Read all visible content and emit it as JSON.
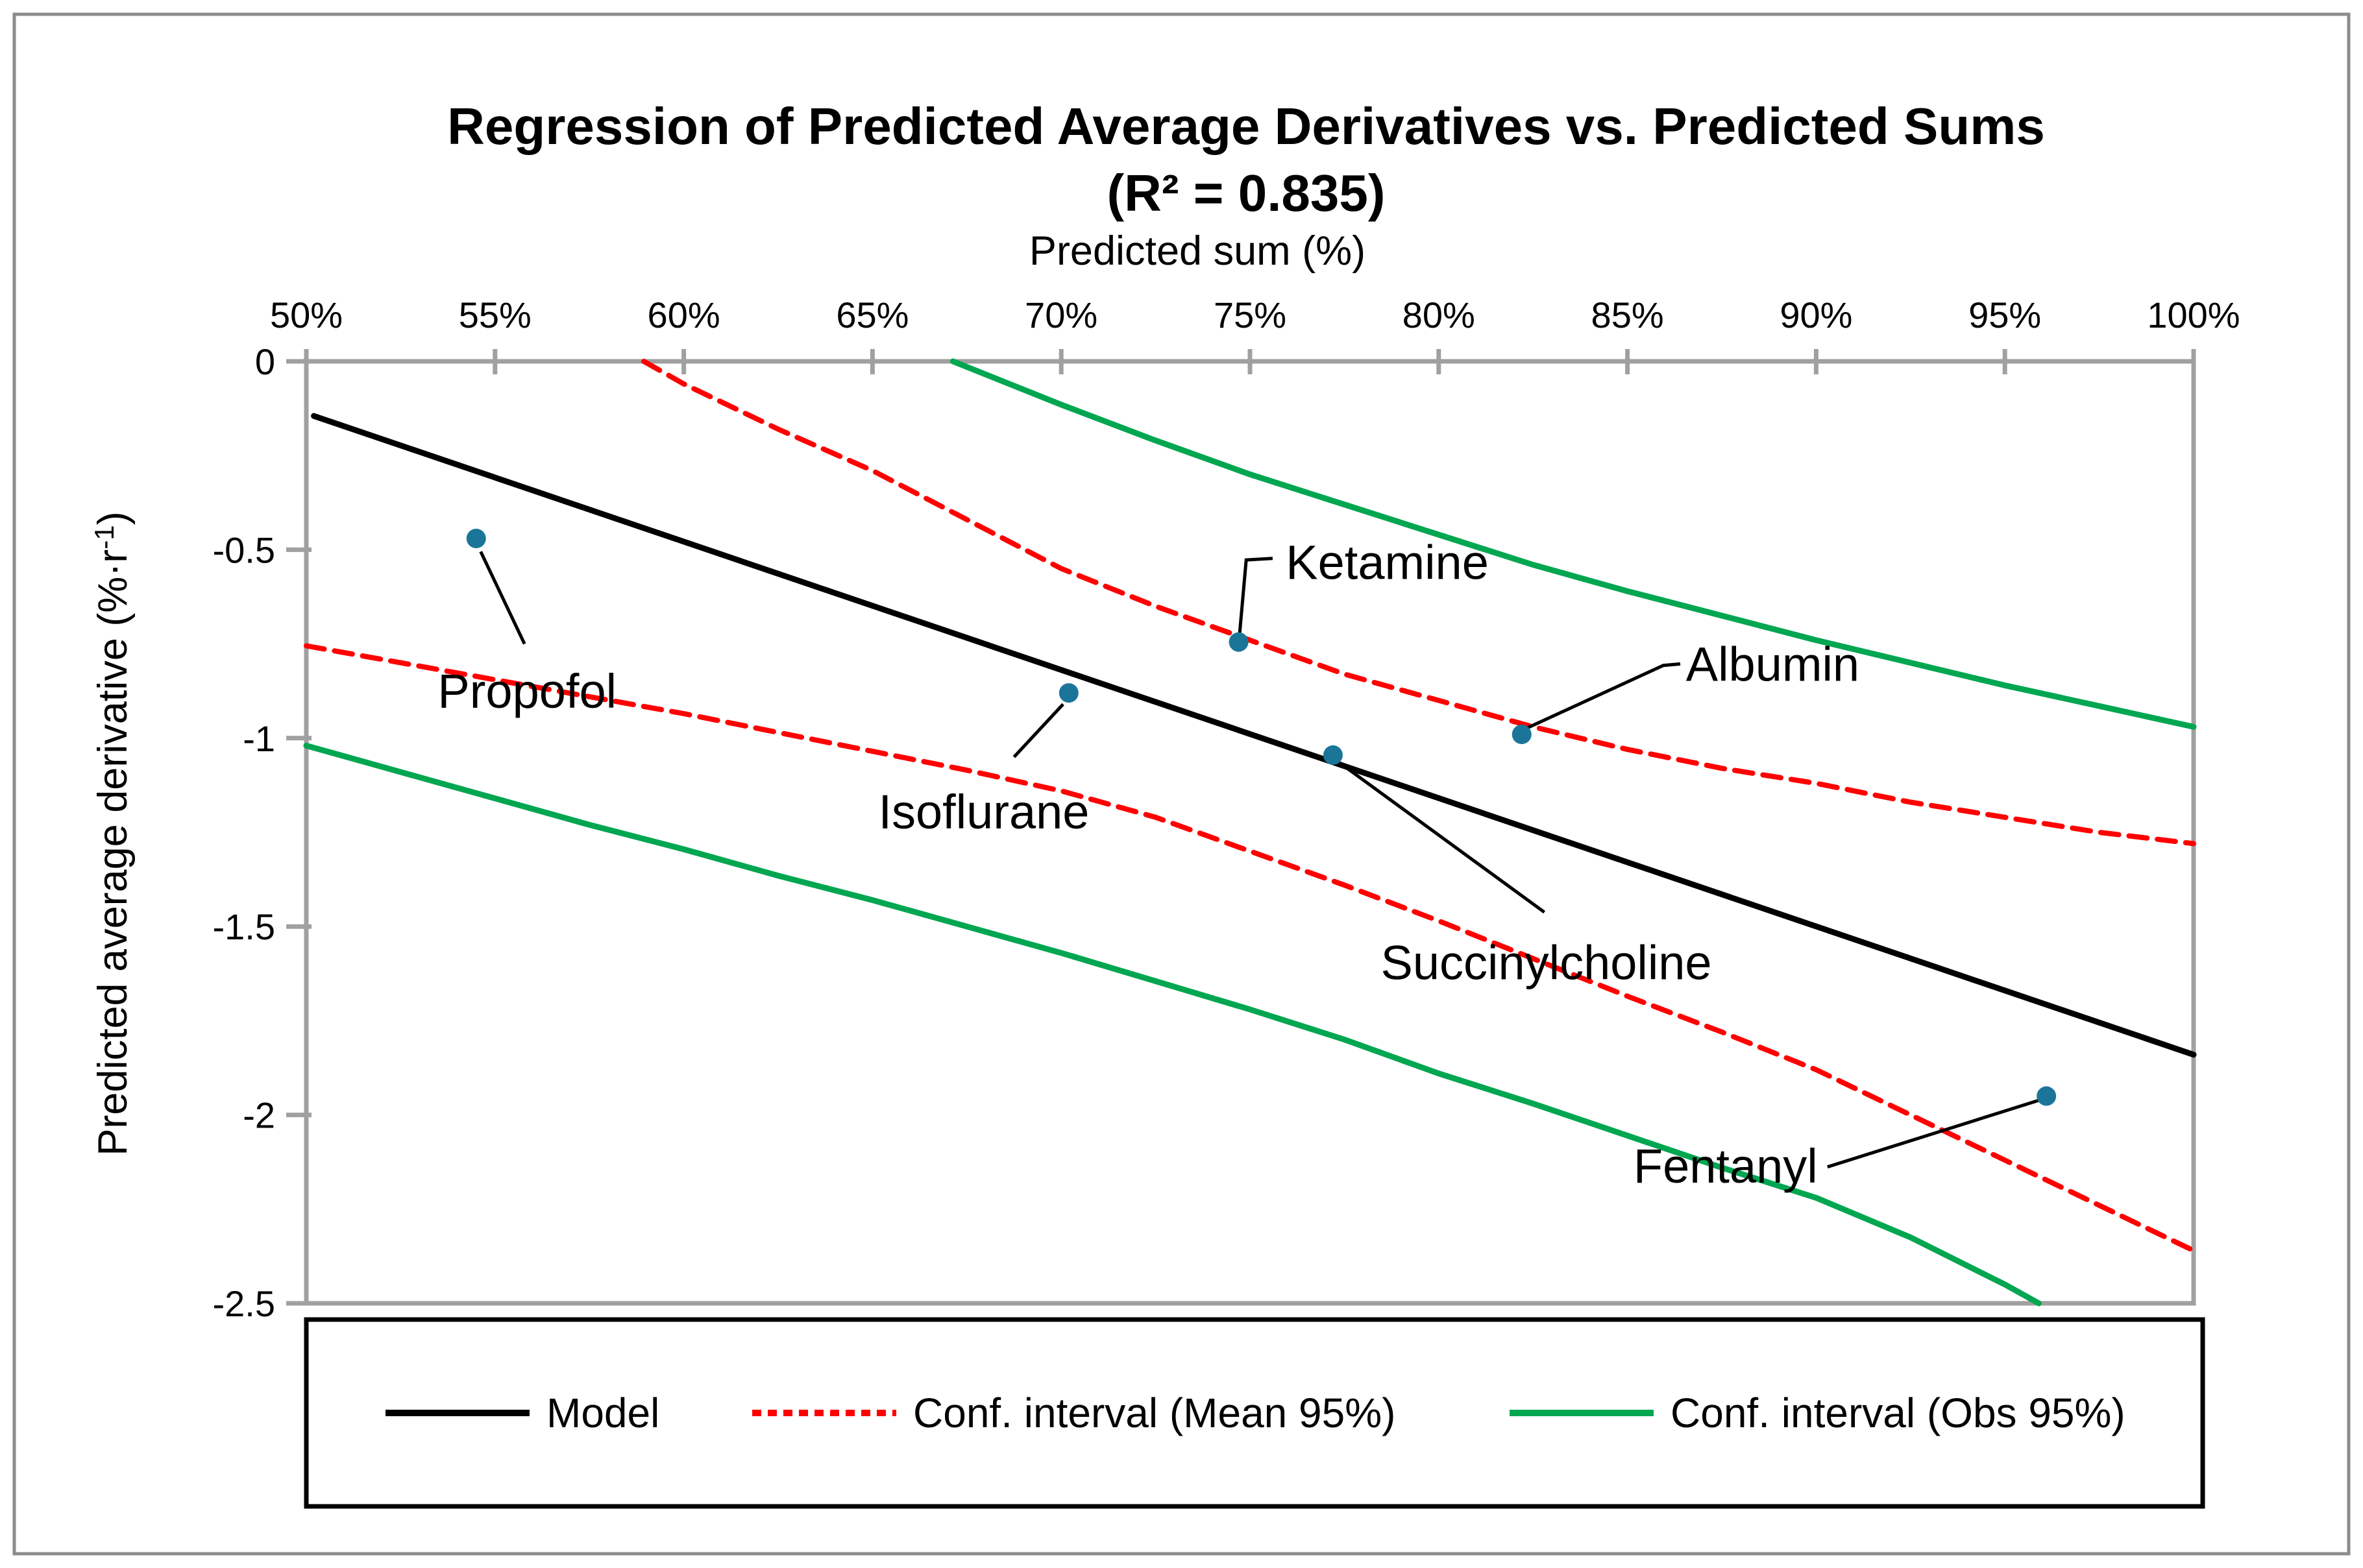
{
  "title": {
    "line1": "Regression of Predicted Average Derivatives vs. Predicted Sums",
    "line2": "(R² = 0.835)"
  },
  "colors": {
    "model": "#000000",
    "ci_mean": "#FF0000",
    "ci_obs": "#00A650",
    "points": "#1B7599",
    "axis": "#A0A0A0",
    "figure_border": "#8C8C8C",
    "background": "#FFFFFF",
    "text": "#000000"
  },
  "chart_data": {
    "type": "scatter",
    "title": "Regression of Predicted Average Derivatives vs. Predicted Sums (R² = 0.835)",
    "r_squared": 0.835,
    "xlabel": "Predicted sum (%)",
    "ylabel_parts": {
      "pre": "Predicted average derivative (%·r",
      "sup": "-1",
      "post": ")"
    },
    "xlim": [
      50,
      100
    ],
    "ylim": [
      -2.5,
      0
    ],
    "x_axis_position": "top",
    "grid": false,
    "x_ticks": {
      "values": [
        50,
        55,
        60,
        65,
        70,
        75,
        80,
        85,
        90,
        95,
        100
      ],
      "labels": [
        "50%",
        "55%",
        "60%",
        "65%",
        "70%",
        "75%",
        "80%",
        "85%",
        "90%",
        "95%",
        "100%"
      ]
    },
    "y_ticks": {
      "values": [
        0,
        -0.5,
        -1,
        -1.5,
        -2,
        -2.5
      ],
      "labels": [
        "0",
        "-0.5",
        "-1",
        "-1.5",
        "-2",
        "-2.5"
      ]
    },
    "points": [
      {
        "name": "Propofol",
        "x": 54.5,
        "y": -0.47,
        "label": {
          "x": 55.85,
          "y": -0.875,
          "anchor": "middle"
        },
        "leader": [
          [
            54.62,
            -0.505
          ],
          [
            55.78,
            -0.75
          ]
        ]
      },
      {
        "name": "Isoflurane",
        "x": 70.2,
        "y": -0.88,
        "label": {
          "x": 67.95,
          "y": -1.195,
          "anchor": "middle"
        },
        "leader": [
          [
            70.05,
            -0.91
          ],
          [
            68.75,
            -1.05
          ]
        ]
      },
      {
        "name": "Ketamine",
        "x": 74.7,
        "y": -0.745,
        "label": {
          "x": 75.95,
          "y": -0.533,
          "anchor": "start"
        },
        "leader": [
          [
            74.72,
            -0.73
          ],
          [
            74.9,
            -0.527
          ],
          [
            75.6,
            -0.523
          ]
        ]
      },
      {
        "name": "Succinylcholine",
        "x": 77.2,
        "y": -1.045,
        "label": {
          "x": 82.85,
          "y": -1.595,
          "anchor": "middle"
        },
        "leader": [
          [
            77.3,
            -1.06
          ],
          [
            82.8,
            -1.462
          ]
        ]
      },
      {
        "name": "Albumin",
        "x": 82.2,
        "y": -0.99,
        "label": {
          "x": 86.55,
          "y": -0.803,
          "anchor": "start"
        },
        "leader": [
          [
            82.3,
            -0.975
          ],
          [
            85.95,
            -0.807
          ],
          [
            86.4,
            -0.803
          ]
        ]
      },
      {
        "name": "Fentanyl",
        "x": 96.1,
        "y": -1.95,
        "label": {
          "x": 87.6,
          "y": -2.135,
          "anchor": "middle"
        },
        "leader": [
          [
            90.3,
            -2.138
          ],
          [
            96.0,
            -1.958
          ]
        ]
      }
    ],
    "series": [
      {
        "name": "Model",
        "style": "solid",
        "color_key": "model",
        "width": 9,
        "pts": [
          [
            50.2,
            -0.145
          ],
          [
            100,
            -1.84
          ]
        ]
      },
      {
        "name": "Conf. interval (Mean 95%) upper",
        "style": "dashed",
        "color_key": "ci_mean",
        "width": 8,
        "pts": [
          [
            58.94,
            0
          ],
          [
            60,
            -0.06
          ],
          [
            62.5,
            -0.18
          ],
          [
            65,
            -0.29
          ],
          [
            67.5,
            -0.42
          ],
          [
            70,
            -0.55
          ],
          [
            72.5,
            -0.65
          ],
          [
            75,
            -0.74
          ],
          [
            77.5,
            -0.83
          ],
          [
            80,
            -0.9
          ],
          [
            82.5,
            -0.97
          ],
          [
            85,
            -1.03
          ],
          [
            87.5,
            -1.08
          ],
          [
            90,
            -1.12
          ],
          [
            92.5,
            -1.17
          ],
          [
            95,
            -1.21
          ],
          [
            97.5,
            -1.25
          ],
          [
            100,
            -1.28
          ]
        ]
      },
      {
        "name": "Conf. interval (Mean 95%) lower",
        "style": "dashed",
        "color_key": "ci_mean",
        "width": 8,
        "pts": [
          [
            50,
            -0.755
          ],
          [
            52.5,
            -0.8
          ],
          [
            55,
            -0.845
          ],
          [
            57.5,
            -0.89
          ],
          [
            60,
            -0.935
          ],
          [
            62.5,
            -0.985
          ],
          [
            65,
            -1.035
          ],
          [
            67.5,
            -1.085
          ],
          [
            70,
            -1.14
          ],
          [
            72.5,
            -1.21
          ],
          [
            75,
            -1.3
          ],
          [
            77.5,
            -1.39
          ],
          [
            80,
            -1.485
          ],
          [
            82.5,
            -1.585
          ],
          [
            85,
            -1.685
          ],
          [
            87.5,
            -1.78
          ],
          [
            90,
            -1.88
          ],
          [
            92.5,
            -2.0
          ],
          [
            95,
            -2.12
          ],
          [
            97.5,
            -2.24
          ],
          [
            100,
            -2.36
          ]
        ]
      },
      {
        "name": "Conf. interval (Obs 95%) upper",
        "style": "solid",
        "color_key": "ci_obs",
        "width": 9,
        "pts": [
          [
            67.13,
            0
          ],
          [
            70,
            -0.115
          ],
          [
            72.5,
            -0.21
          ],
          [
            75,
            -0.3
          ],
          [
            77.5,
            -0.38
          ],
          [
            80,
            -0.46
          ],
          [
            82.5,
            -0.54
          ],
          [
            85,
            -0.61
          ],
          [
            87.5,
            -0.675
          ],
          [
            90,
            -0.74
          ],
          [
            92.5,
            -0.8
          ],
          [
            95,
            -0.86
          ],
          [
            97.5,
            -0.915
          ],
          [
            100,
            -0.97
          ]
        ]
      },
      {
        "name": "Conf. interval (Obs 95%) lower",
        "style": "solid",
        "color_key": "ci_obs",
        "width": 9,
        "pts": [
          [
            50,
            -1.02
          ],
          [
            52.5,
            -1.09
          ],
          [
            55,
            -1.16
          ],
          [
            57.5,
            -1.23
          ],
          [
            60,
            -1.295
          ],
          [
            62.5,
            -1.365
          ],
          [
            65,
            -1.43
          ],
          [
            67.5,
            -1.5
          ],
          [
            70,
            -1.57
          ],
          [
            72.5,
            -1.645
          ],
          [
            75,
            -1.72
          ],
          [
            77.5,
            -1.8
          ],
          [
            80,
            -1.89
          ],
          [
            82.5,
            -1.97
          ],
          [
            85,
            -2.055
          ],
          [
            87.5,
            -2.14
          ],
          [
            90,
            -2.22
          ],
          [
            92.5,
            -2.325
          ],
          [
            95,
            -2.45
          ],
          [
            95.9,
            -2.5
          ]
        ]
      }
    ],
    "legend": {
      "position": "bottom",
      "items": [
        {
          "label": "Model",
          "color_key": "model",
          "dash": null
        },
        {
          "label": "Conf. interval (Mean 95%)",
          "color_key": "ci_mean",
          "dash": "14 10"
        },
        {
          "label": "Conf. interval (Obs 95%)",
          "color_key": "ci_obs",
          "dash": null
        }
      ]
    }
  }
}
